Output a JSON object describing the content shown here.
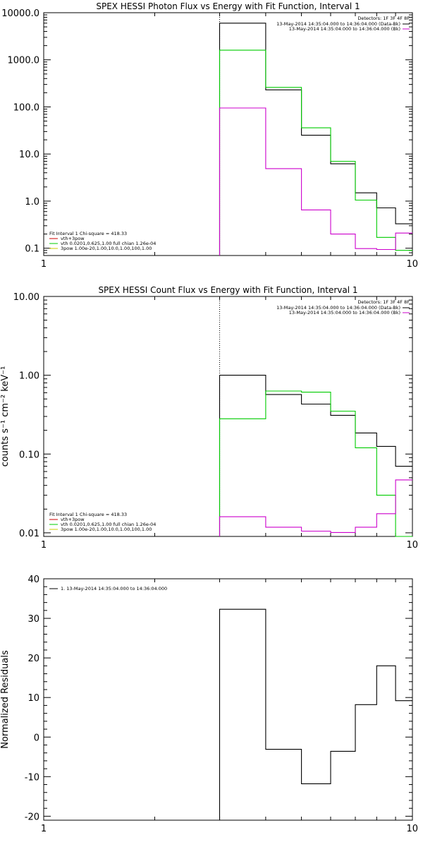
{
  "chart_data": [
    {
      "type": "line",
      "step": true,
      "title": "SPEX HESSI Photon Flux vs Energy with Fit Function, Interval 1",
      "xscale": "log",
      "yscale": "log",
      "xlim": [
        1,
        10
      ],
      "ylim": [
        0.07,
        10000
      ],
      "xtick_labels": [
        {
          "v": 1,
          "t": "1"
        },
        {
          "v": 10,
          "t": "10"
        }
      ],
      "ytick_labels": [
        {
          "v": 0.1,
          "t": "0.1"
        },
        {
          "v": 1,
          "t": "1.0"
        },
        {
          "v": 10,
          "t": "10.0"
        },
        {
          "v": 100,
          "t": "100.0"
        },
        {
          "v": 1000,
          "t": "1000.0"
        },
        {
          "v": 10000,
          "t": "10000.0"
        }
      ],
      "vline": 3,
      "legend_top_right": {
        "title": "Detectors: 1F 3F 4F 8F",
        "entries": [
          {
            "label": "13-May-2014 14:35:04.000 to 14:36:04.000 (Data-Bk)",
            "color": "#000000"
          },
          {
            "label": "13-May-2014 14:35:04.000 to 14:36:04.000 (Bk)",
            "color": "#cc00cc"
          }
        ]
      },
      "legend_bottom_left": {
        "title": "Fit Interval 1   Chi-square = 418.33",
        "entries": [
          {
            "label": "vth+3pow",
            "color": "#cc0000"
          },
          {
            "label": "vth 0.0201,0.625,1.00  full chian 1.26e-04",
            "color": "#00cc00"
          },
          {
            "label": "3pow 1.00e-20,1.00,10.0,1.00,100,1.00",
            "color": "#cccc00"
          }
        ]
      },
      "edges": [
        3,
        4,
        5,
        6,
        7,
        8,
        9,
        10
      ],
      "series": [
        {
          "values": [
            6000,
            230,
            25,
            6.2,
            1.5,
            0.72,
            0.33
          ],
          "color": "#000000"
        },
        {
          "values": [
            1600,
            260,
            36,
            7.0,
            1.05,
            0.17,
            0.09
          ],
          "color": "#00cc00"
        },
        {
          "values": [
            95,
            4.9,
            0.65,
            0.2,
            0.098,
            0.094,
            0.21
          ],
          "color": "#cc00cc"
        }
      ]
    },
    {
      "type": "line",
      "step": true,
      "title": "SPEX HESSI Count Flux vs Energy with Fit Function, Interval 1",
      "ylabel": "counts s⁻¹ cm⁻² keV⁻¹",
      "xscale": "log",
      "yscale": "log",
      "xlim": [
        1,
        10
      ],
      "ylim": [
        0.009,
        10
      ],
      "xtick_labels": [
        {
          "v": 1,
          "t": "1"
        },
        {
          "v": 10,
          "t": "10"
        }
      ],
      "ytick_labels": [
        {
          "v": 0.01,
          "t": "0.01"
        },
        {
          "v": 0.1,
          "t": "0.10"
        },
        {
          "v": 1,
          "t": "1.00"
        },
        {
          "v": 10,
          "t": "10.00"
        }
      ],
      "vline": 3,
      "legend_top_right": {
        "title": "Detectors: 1F 3F 4F 8F",
        "entries": [
          {
            "label": "13-May-2014 14:35:04.000 to 14:36:04.000 (Data-Bk)",
            "color": "#000000"
          },
          {
            "label": "13-May-2014 14:35:04.000 to 14:36:04.000 (Bk)",
            "color": "#cc00cc"
          }
        ]
      },
      "legend_bottom_left": {
        "title": "Fit Interval 1   Chi-square = 418.33",
        "entries": [
          {
            "label": "vth+3pow",
            "color": "#cc0000"
          },
          {
            "label": "vth 0.0201,0.625,1.00  full chian 1.26e-04",
            "color": "#00cc00"
          },
          {
            "label": "3pow 1.00e-20,1.00,10.0,1.00,100,1.00",
            "color": "#cccc00"
          }
        ]
      },
      "edges": [
        3,
        4,
        5,
        6,
        7,
        8,
        9,
        10
      ],
      "series": [
        {
          "values": [
            1.0,
            0.57,
            0.43,
            0.31,
            0.185,
            0.125,
            0.07
          ],
          "color": "#000000"
        },
        {
          "values": [
            0.28,
            0.63,
            0.61,
            0.35,
            0.12,
            0.03,
            0.008
          ],
          "color": "#00cc00"
        },
        {
          "values": [
            0.016,
            0.0118,
            0.0105,
            0.0101,
            0.0118,
            0.0175,
            0.047
          ],
          "color": "#cc00cc"
        }
      ]
    },
    {
      "type": "line",
      "step": true,
      "title": "",
      "ylabel": "Normalized Residuals",
      "xscale": "log",
      "yscale": "linear",
      "xlim": [
        1,
        10
      ],
      "ylim": [
        -21,
        40
      ],
      "xtick_labels": [
        {
          "v": 1,
          "t": "1"
        },
        {
          "v": 10,
          "t": "10"
        }
      ],
      "ytick_labels": [
        {
          "v": -20,
          "t": "-20"
        },
        {
          "v": -10,
          "t": "-10"
        },
        {
          "v": 0,
          "t": "0"
        },
        {
          "v": 10,
          "t": "10"
        },
        {
          "v": 20,
          "t": "20"
        },
        {
          "v": 30,
          "t": "30"
        },
        {
          "v": 40,
          "t": "40"
        }
      ],
      "legend_top_left": {
        "entries": [
          {
            "label": "1. 13-May-2014 14:35:04.000 to 14:36:04.000",
            "color": "#000000"
          }
        ]
      },
      "edges": [
        3,
        4,
        5,
        6,
        7,
        8,
        9,
        10
      ],
      "series": [
        {
          "values": [
            32.3,
            -3.1,
            -11.8,
            -3.6,
            8.2,
            18.0,
            9.2
          ],
          "color": "#000000"
        }
      ]
    }
  ]
}
